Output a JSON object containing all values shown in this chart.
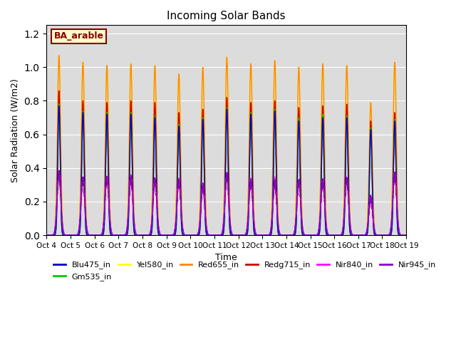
{
  "title": "Incoming Solar Bands",
  "xlabel": "Time",
  "ylabel": "Solar Radiation (W/m2)",
  "annotation": "BA_arable",
  "ylim": [
    0,
    1.25
  ],
  "background_color": "#dcdcdc",
  "legend_entries": [
    "Blu475_in",
    "Gm535_in",
    "Yel580_in",
    "Red655_in",
    "Redg715_in",
    "Nir840_in",
    "Nir945_in"
  ],
  "legend_colors": [
    "#0000cc",
    "#00cc00",
    "#ffff00",
    "#ff8800",
    "#cc0000",
    "#ff00ff",
    "#8800cc"
  ],
  "num_days": 15,
  "x_tick_labels": [
    "Oct 4",
    "Oct 5",
    "Oct 6",
    "Oct 7",
    "Oct 8",
    "Oct 9",
    "Oct 10",
    "Oct 11",
    "Oct 12",
    "Oct 13",
    "Oct 14",
    "Oct 15",
    "Oct 16",
    "Oct 17",
    "Oct 18",
    "Oct 19"
  ],
  "yel_peaks": [
    1.07,
    1.03,
    1.01,
    1.02,
    1.01,
    0.96,
    1.0,
    1.06,
    1.02,
    1.04,
    1.0,
    1.02,
    1.01,
    0.79,
    1.03
  ],
  "red_peaks": [
    1.07,
    1.03,
    1.01,
    1.02,
    1.01,
    0.96,
    1.0,
    1.06,
    1.02,
    1.04,
    1.0,
    1.02,
    1.01,
    0.79,
    1.03
  ],
  "redg_peaks": [
    0.86,
    0.8,
    0.79,
    0.8,
    0.79,
    0.73,
    0.75,
    0.82,
    0.79,
    0.8,
    0.76,
    0.77,
    0.78,
    0.68,
    0.73
  ],
  "blu_peaks": [
    0.77,
    0.73,
    0.72,
    0.72,
    0.7,
    0.65,
    0.69,
    0.75,
    0.72,
    0.74,
    0.68,
    0.7,
    0.7,
    0.63,
    0.68
  ],
  "grn_peaks": [
    0.78,
    0.74,
    0.73,
    0.73,
    0.71,
    0.66,
    0.7,
    0.76,
    0.73,
    0.75,
    0.7,
    0.72,
    0.71,
    0.64,
    0.69
  ],
  "nir840_peaks": [
    0.36,
    0.33,
    0.34,
    0.34,
    0.33,
    0.32,
    0.29,
    0.35,
    0.32,
    0.32,
    0.32,
    0.32,
    0.33,
    0.22,
    0.36
  ],
  "nir945_peaks": [
    0.36,
    0.33,
    0.34,
    0.34,
    0.33,
    0.32,
    0.29,
    0.35,
    0.32,
    0.32,
    0.32,
    0.32,
    0.33,
    0.22,
    0.36
  ],
  "pts_per_day": 500
}
